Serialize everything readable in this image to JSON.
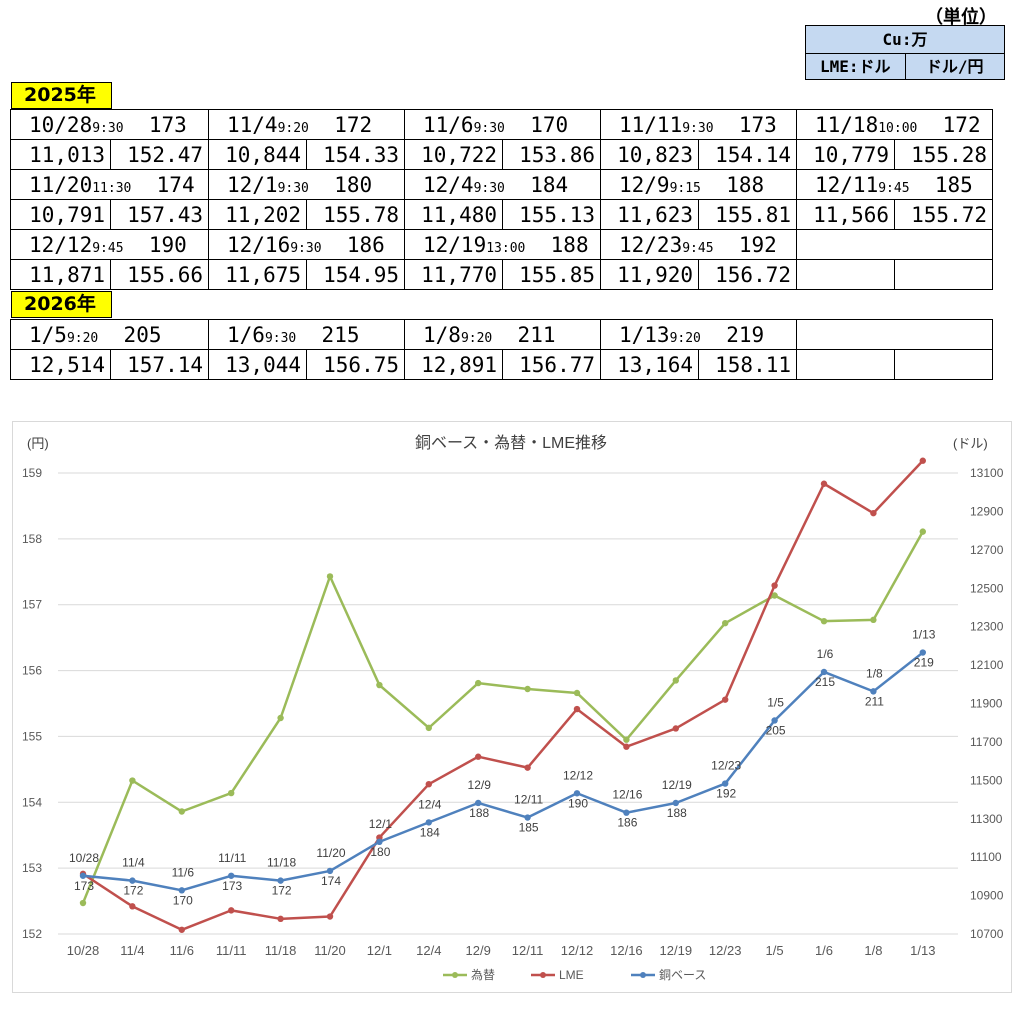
{
  "unit": {
    "paren_label": "（単位）",
    "cu_label": "Cu:万",
    "lme_label": "LME:ドル",
    "fx_label": "ドル/円"
  },
  "tables": [
    {
      "year_label": "2025年",
      "entries": [
        {
          "date": "10/28",
          "time": "9:30",
          "base": "173",
          "lme": "11,013",
          "fx": "152.47"
        },
        {
          "date": "11/4",
          "time": "9:20",
          "base": "172",
          "lme": "10,844",
          "fx": "154.33"
        },
        {
          "date": "11/6",
          "time": "9:30",
          "base": "170",
          "lme": "10,722",
          "fx": "153.86"
        },
        {
          "date": "11/11",
          "time": "9:30",
          "base": "173",
          "lme": "10,823",
          "fx": "154.14"
        },
        {
          "date": "11/18",
          "time": "10:00",
          "base": "172",
          "lme": "10,779",
          "fx": "155.28"
        },
        {
          "date": "11/20",
          "time": "11:30",
          "base": "174",
          "lme": "10,791",
          "fx": "157.43"
        },
        {
          "date": "12/1",
          "time": "9:30",
          "base": "180",
          "lme": "11,202",
          "fx": "155.78"
        },
        {
          "date": "12/4",
          "time": "9:30",
          "base": "184",
          "lme": "11,480",
          "fx": "155.13"
        },
        {
          "date": "12/9",
          "time": "9:15",
          "base": "188",
          "lme": "11,623",
          "fx": "155.81"
        },
        {
          "date": "12/11",
          "time": "9:45",
          "base": "185",
          "lme": "11,566",
          "fx": "155.72"
        },
        {
          "date": "12/12",
          "time": "9:45",
          "base": "190",
          "lme": "11,871",
          "fx": "155.66"
        },
        {
          "date": "12/16",
          "time": "9:30",
          "base": "186",
          "lme": "11,675",
          "fx": "154.95"
        },
        {
          "date": "12/19",
          "time": "13:00",
          "base": "188",
          "lme": "11,770",
          "fx": "155.85"
        },
        {
          "date": "12/23",
          "time": "9:45",
          "base": "192",
          "lme": "11,920",
          "fx": "156.72"
        }
      ]
    },
    {
      "year_label": "2026年",
      "entries": [
        {
          "date": "1/5",
          "time": "9:20",
          "base": "205",
          "lme": "12,514",
          "fx": "157.14"
        },
        {
          "date": "1/6",
          "time": "9:30",
          "base": "215",
          "lme": "13,044",
          "fx": "156.75"
        },
        {
          "date": "1/8",
          "time": "9:20",
          "base": "211",
          "lme": "12,891",
          "fx": "156.77"
        },
        {
          "date": "1/13",
          "time": "9:20",
          "base": "219",
          "lme": "13,164",
          "fx": "158.11"
        }
      ]
    }
  ],
  "chart_data": {
    "type": "line",
    "title": "銅ベース・為替・LME推移",
    "left_axis_label": "(円)",
    "right_axis_label": "(ドル)",
    "categories": [
      "10/28",
      "11/4",
      "11/6",
      "11/11",
      "11/18",
      "11/20",
      "12/1",
      "12/4",
      "12/9",
      "12/11",
      "12/12",
      "12/16",
      "12/19",
      "12/23",
      "1/5",
      "1/6",
      "1/8",
      "1/13"
    ],
    "left_axis": {
      "min": 152,
      "max": 159,
      "ticks": [
        152,
        153,
        154,
        155,
        156,
        157,
        158,
        159
      ]
    },
    "right_axis": {
      "min": 10700,
      "max": 13100,
      "ticks": [
        10700,
        10900,
        11100,
        11300,
        11500,
        11700,
        11900,
        12100,
        12300,
        12500,
        12700,
        12900,
        13100
      ]
    },
    "base_axis": {
      "min": 161,
      "max": 256
    },
    "gridlines": true,
    "legend_position": "bottom",
    "series": [
      {
        "name": "為替",
        "axis": "left",
        "color": "#9bbb59",
        "values": [
          152.47,
          154.33,
          153.86,
          154.14,
          155.28,
          157.43,
          155.78,
          155.13,
          155.81,
          155.72,
          155.66,
          154.95,
          155.85,
          156.72,
          157.14,
          156.75,
          156.77,
          158.11
        ]
      },
      {
        "name": "LME",
        "axis": "right",
        "color": "#c0504d",
        "values": [
          11013,
          10844,
          10722,
          10823,
          10779,
          10791,
          11202,
          11480,
          11623,
          11566,
          11871,
          11675,
          11770,
          11920,
          12514,
          13044,
          12891,
          13164
        ]
      },
      {
        "name": "銅ベース",
        "axis": "base",
        "color": "#4f81bd",
        "values": [
          173,
          172,
          170,
          173,
          172,
          174,
          180,
          184,
          188,
          185,
          190,
          186,
          188,
          192,
          205,
          215,
          211,
          219
        ]
      }
    ]
  }
}
